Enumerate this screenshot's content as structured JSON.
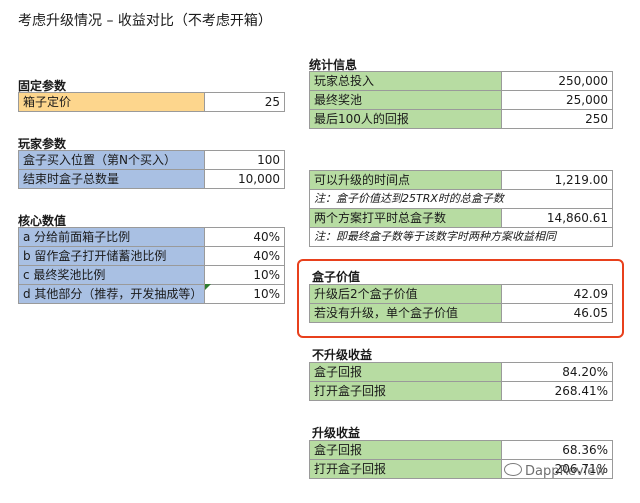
{
  "title": "考虑升级情况 – 收益对比（不考虑开箱）",
  "fixed_params": {
    "heading": "固定参数",
    "rows": [
      {
        "label": "箱子定价",
        "value": "25"
      }
    ]
  },
  "player_params": {
    "heading": "玩家参数",
    "rows": [
      {
        "label": "盒子买入位置（第N个买入）",
        "value": "100"
      },
      {
        "label": "结束时盒子总数量",
        "value": "10,000"
      }
    ]
  },
  "core_values": {
    "heading": "核心数值",
    "rows": [
      {
        "label": "a 分给前面箱子比例",
        "value": "40%"
      },
      {
        "label": "b 留作盒子打开储蓄池比例",
        "value": "40%"
      },
      {
        "label": "c 最终奖池比例",
        "value": "10%"
      },
      {
        "label": "d 其他部分（推荐，开发抽成等）",
        "value": "10%"
      }
    ]
  },
  "stats": {
    "heading": "统计信息",
    "rows": [
      {
        "label": "玩家总投入",
        "value": "250,000"
      },
      {
        "label": "最终奖池",
        "value": "25,000"
      },
      {
        "label": "最后100人的回报",
        "value": "250"
      }
    ]
  },
  "upgrade_time": {
    "rows": [
      {
        "label": "可以升级的时间点",
        "value": "1,219.00"
      },
      {
        "note": "注：盒子价值达到25TRX时的总盒子数"
      },
      {
        "label": "两个方案打平时总盒子数",
        "value": "14,860.61"
      },
      {
        "note": "注：即最终盒子数等于该数字时两种方案收益相同"
      }
    ]
  },
  "box_value": {
    "heading": "盒子价值",
    "rows": [
      {
        "label": "升级后2个盒子价值",
        "value": "42.09"
      },
      {
        "label": "若没有升级，单个盒子价值",
        "value": "46.05"
      }
    ]
  },
  "no_upgrade_return": {
    "heading": "不升级收益",
    "rows": [
      {
        "label": "盒子回报",
        "value": "84.20%"
      },
      {
        "label": "打开盒子回报",
        "value": "268.41%"
      }
    ]
  },
  "upgrade_return": {
    "heading": "升级收益",
    "rows": [
      {
        "label": "盒子回报",
        "value": "68.36%"
      },
      {
        "label": "打开盒子回报",
        "value": "206.71%"
      }
    ]
  },
  "watermark": "DappReview",
  "colors": {
    "highlight_border": "#e8401c",
    "yellow": "#fdd68d",
    "blue": "#a9c0e3",
    "green": "#b7dca2"
  }
}
